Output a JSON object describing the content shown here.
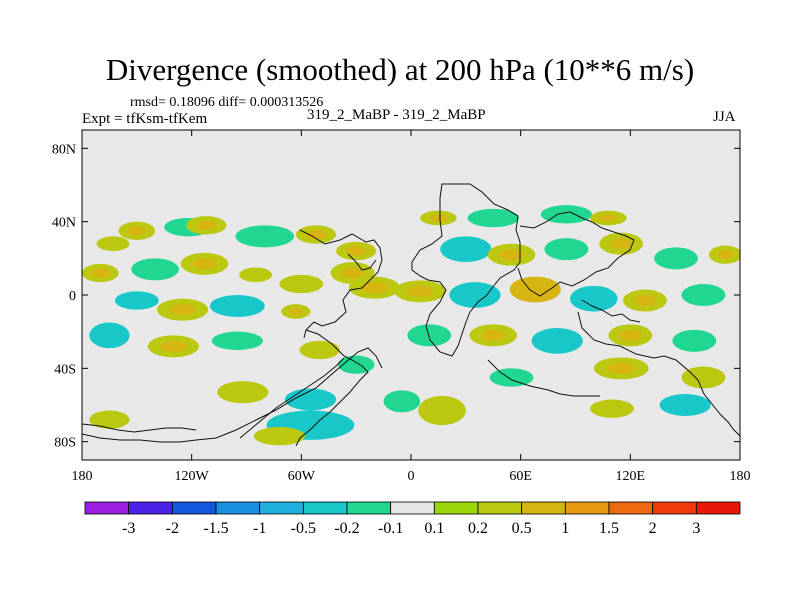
{
  "chart_data": {
    "type": "heatmap",
    "title": "Divergence (smoothed) at 200 hPa (10**6 m/s)",
    "subtitle_stats": "rmsd= 0.18096 diff= 0.000313526",
    "experiment": "Expt = tfKsm-tfKem",
    "runs": "319_2_MaBP - 319_2_MaBP",
    "season": "JJA",
    "x_range": [
      -180,
      180
    ],
    "y_range": [
      -90,
      90
    ],
    "x_ticks": [
      {
        "value": -180,
        "label": "180"
      },
      {
        "value": -120,
        "label": "120W"
      },
      {
        "value": -60,
        "label": "60W"
      },
      {
        "value": 0,
        "label": "0"
      },
      {
        "value": 60,
        "label": "60E"
      },
      {
        "value": 120,
        "label": "120E"
      },
      {
        "value": 180,
        "label": "180"
      }
    ],
    "y_ticks": [
      {
        "value": 80,
        "label": "80N"
      },
      {
        "value": 40,
        "label": "40N"
      },
      {
        "value": 0,
        "label": "0"
      },
      {
        "value": -40,
        "label": "40S"
      },
      {
        "value": -80,
        "label": "80S"
      }
    ],
    "colorbar": {
      "colors": [
        "#9a1fe0",
        "#4b22e6",
        "#1456dc",
        "#1a8ee0",
        "#20b0e0",
        "#18c8c8",
        "#20d690",
        "#e6e6e6",
        "#9ad60a",
        "#bcc810",
        "#d6b412",
        "#e69a10",
        "#ec6a10",
        "#f03a0a",
        "#e81808"
      ],
      "labels": [
        "-3",
        "-2",
        "-1.5",
        "-1",
        "-0.5",
        "-0.2",
        "-0.1",
        "0.1",
        "0.2",
        "0.5",
        "1",
        "1.5",
        "2",
        "3"
      ]
    },
    "field_blobs": [
      {
        "lon": -150,
        "lat": 35,
        "w": 10,
        "h": 5,
        "value": 0.3
      },
      {
        "lon": -163,
        "lat": 28,
        "w": 9,
        "h": 4,
        "value": 0.25
      },
      {
        "lon": -122,
        "lat": 37,
        "w": 13,
        "h": 5,
        "value": -0.15
      },
      {
        "lon": -112,
        "lat": 38,
        "w": 11,
        "h": 5,
        "value": 0.3
      },
      {
        "lon": -80,
        "lat": 32,
        "w": 16,
        "h": 6,
        "value": -0.15
      },
      {
        "lon": -52,
        "lat": 33,
        "w": 11,
        "h": 5,
        "value": 0.3
      },
      {
        "lon": -30,
        "lat": 24,
        "w": 11,
        "h": 5,
        "value": 0.3
      },
      {
        "lon": -170,
        "lat": 12,
        "w": 10,
        "h": 5,
        "value": 0.3
      },
      {
        "lon": -140,
        "lat": 14,
        "w": 13,
        "h": 6,
        "value": -0.15
      },
      {
        "lon": -113,
        "lat": 17,
        "w": 13,
        "h": 6,
        "value": 0.4
      },
      {
        "lon": -85,
        "lat": 11,
        "w": 9,
        "h": 4,
        "value": 0.25
      },
      {
        "lon": -60,
        "lat": 6,
        "w": 12,
        "h": 5,
        "value": 0.25
      },
      {
        "lon": -32,
        "lat": 12,
        "w": 12,
        "h": 6,
        "value": 0.3
      },
      {
        "lon": -20,
        "lat": 4,
        "w": 14,
        "h": 6,
        "value": 0.5
      },
      {
        "lon": -150,
        "lat": -3,
        "w": 12,
        "h": 5,
        "value": -0.2
      },
      {
        "lon": -125,
        "lat": -8,
        "w": 14,
        "h": 6,
        "value": 0.35
      },
      {
        "lon": -95,
        "lat": -6,
        "w": 15,
        "h": 6,
        "value": -0.2
      },
      {
        "lon": -63,
        "lat": -9,
        "w": 8,
        "h": 4,
        "value": 0.3
      },
      {
        "lon": -165,
        "lat": -22,
        "w": 11,
        "h": 7,
        "value": -0.2
      },
      {
        "lon": -130,
        "lat": -28,
        "w": 14,
        "h": 6,
        "value": 0.3
      },
      {
        "lon": -95,
        "lat": -25,
        "w": 14,
        "h": 5,
        "value": -0.15
      },
      {
        "lon": -50,
        "lat": -30,
        "w": 11,
        "h": 5,
        "value": 0.25
      },
      {
        "lon": -30,
        "lat": -38,
        "w": 10,
        "h": 5,
        "value": -0.15
      },
      {
        "lon": -92,
        "lat": -53,
        "w": 14,
        "h": 6,
        "value": 0.25
      },
      {
        "lon": -55,
        "lat": -57,
        "w": 14,
        "h": 6,
        "value": -0.2
      },
      {
        "lon": -55,
        "lat": -71,
        "w": 24,
        "h": 8,
        "value": -0.25
      },
      {
        "lon": -72,
        "lat": -77,
        "w": 14,
        "h": 5,
        "value": 0.25
      },
      {
        "lon": -5,
        "lat": -58,
        "w": 10,
        "h": 6,
        "value": -0.15
      },
      {
        "lon": 17,
        "lat": -63,
        "w": 13,
        "h": 8,
        "value": 0.25
      },
      {
        "lon": -165,
        "lat": -68,
        "w": 11,
        "h": 5,
        "value": 0.25
      },
      {
        "lon": 15,
        "lat": 42,
        "w": 10,
        "h": 4,
        "value": 0.3
      },
      {
        "lon": 45,
        "lat": 42,
        "w": 14,
        "h": 5,
        "value": -0.15
      },
      {
        "lon": 85,
        "lat": 44,
        "w": 14,
        "h": 5,
        "value": -0.15
      },
      {
        "lon": 108,
        "lat": 42,
        "w": 10,
        "h": 4,
        "value": 0.3
      },
      {
        "lon": 30,
        "lat": 25,
        "w": 14,
        "h": 7,
        "value": -0.2
      },
      {
        "lon": 55,
        "lat": 22,
        "w": 13,
        "h": 6,
        "value": 0.3
      },
      {
        "lon": 85,
        "lat": 25,
        "w": 12,
        "h": 6,
        "value": -0.15
      },
      {
        "lon": 115,
        "lat": 28,
        "w": 12,
        "h": 6,
        "value": 0.3
      },
      {
        "lon": 145,
        "lat": 20,
        "w": 12,
        "h": 6,
        "value": -0.15
      },
      {
        "lon": 172,
        "lat": 22,
        "w": 9,
        "h": 5,
        "value": 0.3
      },
      {
        "lon": 5,
        "lat": 2,
        "w": 14,
        "h": 6,
        "value": 0.5
      },
      {
        "lon": 35,
        "lat": 0,
        "w": 14,
        "h": 7,
        "value": -0.2
      },
      {
        "lon": 68,
        "lat": 3,
        "w": 14,
        "h": 7,
        "value": 0.6
      },
      {
        "lon": 100,
        "lat": -2,
        "w": 13,
        "h": 7,
        "value": -0.2
      },
      {
        "lon": 128,
        "lat": -3,
        "w": 12,
        "h": 6,
        "value": 0.35
      },
      {
        "lon": 160,
        "lat": 0,
        "w": 12,
        "h": 6,
        "value": -0.15
      },
      {
        "lon": 10,
        "lat": -22,
        "w": 12,
        "h": 6,
        "value": -0.15
      },
      {
        "lon": 45,
        "lat": -22,
        "w": 13,
        "h": 6,
        "value": 0.3
      },
      {
        "lon": 80,
        "lat": -25,
        "w": 14,
        "h": 7,
        "value": -0.2
      },
      {
        "lon": 120,
        "lat": -22,
        "w": 12,
        "h": 6,
        "value": 0.3
      },
      {
        "lon": 155,
        "lat": -25,
        "w": 12,
        "h": 6,
        "value": -0.15
      },
      {
        "lon": 115,
        "lat": -40,
        "w": 15,
        "h": 6,
        "value": 0.3
      },
      {
        "lon": 160,
        "lat": -45,
        "w": 12,
        "h": 6,
        "value": 0.25
      },
      {
        "lon": 55,
        "lat": -45,
        "w": 12,
        "h": 5,
        "value": -0.15
      },
      {
        "lon": 150,
        "lat": -60,
        "w": 14,
        "h": 6,
        "value": -0.2
      },
      {
        "lon": 110,
        "lat": -62,
        "w": 12,
        "h": 5,
        "value": 0.25
      }
    ]
  }
}
